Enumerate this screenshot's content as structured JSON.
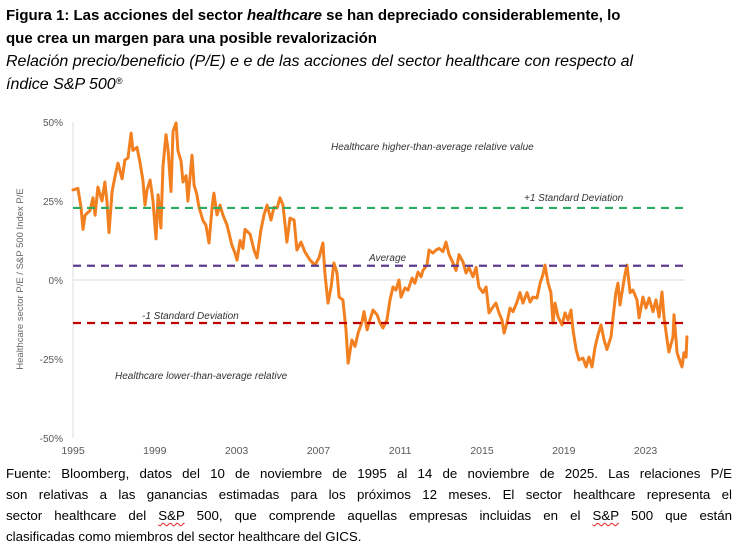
{
  "figure": {
    "title_line1_pre": "Figura 1: Las acciones del sector ",
    "title_line1_em": "healthcare",
    "title_line1_post": " se han depreciado considerablemente, lo",
    "title_line2": "que crea un margen para una posible revalorización",
    "subtitle_line1": "Relación precio/beneficio (P/E) e e de las acciones del sector healthcare con respecto al",
    "subtitle_line2": "índice S&P 500",
    "subtitle_sup": "®"
  },
  "chart_data": {
    "type": "line",
    "title": "",
    "xlabel": "",
    "ylabel": "Healthcare sector P/E / S&P 500 Index P/E",
    "xlim": [
      1995,
      2025.1
    ],
    "ylim": [
      -50,
      50
    ],
    "grid": false,
    "legend": null,
    "yticks": [
      50,
      25,
      0,
      -25,
      -50
    ],
    "ytick_labels": [
      "50%",
      "25%",
      "0%",
      "-25%",
      "-50%"
    ],
    "xticks": [
      1995,
      1999,
      2003,
      2007,
      2011,
      2015,
      2019,
      2023
    ],
    "xtick_labels": [
      "1995",
      "1999",
      "2003",
      "2007",
      "2011",
      "2015",
      "2019",
      "2023"
    ],
    "series": [
      {
        "color": "#F28021",
        "x": [
          1995.0,
          1995.24,
          1995.39,
          1995.49,
          1995.59,
          1995.83,
          1995.98,
          1996.08,
          1996.22,
          1996.42,
          1996.56,
          1996.66,
          1996.76,
          1996.91,
          1997.05,
          1997.2,
          1997.4,
          1997.54,
          1997.69,
          1997.84,
          1997.93,
          1998.13,
          1998.28,
          1998.42,
          1998.52,
          1998.62,
          1998.77,
          1998.91,
          1999.06,
          1999.16,
          1999.3,
          1999.4,
          1999.55,
          1999.65,
          1999.79,
          1999.89,
          2000.04,
          2000.13,
          2000.28,
          2000.38,
          2000.53,
          2000.62,
          2000.82,
          2000.92,
          2001.06,
          2001.16,
          2001.36,
          2001.5,
          2001.65,
          2001.8,
          2001.89,
          2002.04,
          2002.19,
          2002.33,
          2002.53,
          2002.77,
          2002.92,
          2003.02,
          2003.17,
          2003.31,
          2003.41,
          2003.66,
          2003.85,
          2004.0,
          2004.19,
          2004.34,
          2004.49,
          2004.68,
          2004.83,
          2004.98,
          2005.12,
          2005.27,
          2005.46,
          2005.61,
          2005.81,
          2005.95,
          2006.15,
          2006.34,
          2006.59,
          2006.83,
          2007.03,
          2007.22,
          2007.32,
          2007.47,
          2007.62,
          2007.76,
          2007.91,
          2008.01,
          2008.2,
          2008.35,
          2008.45,
          2008.64,
          2008.79,
          2008.94,
          2009.13,
          2009.23,
          2009.38,
          2009.52,
          2009.67,
          2009.87,
          2010.01,
          2010.16,
          2010.35,
          2010.5,
          2010.65,
          2010.79,
          2010.94,
          2011.04,
          2011.23,
          2011.38,
          2011.58,
          2011.72,
          2011.87,
          2012.02,
          2012.11,
          2012.31,
          2012.41,
          2012.6,
          2012.75,
          2012.9,
          2013.09,
          2013.24,
          2013.39,
          2013.58,
          2013.73,
          2013.88,
          2014.07,
          2014.22,
          2014.36,
          2014.56,
          2014.71,
          2014.85,
          2015.05,
          2015.2,
          2015.34,
          2015.54,
          2015.68,
          2015.83,
          2015.98,
          2016.08,
          2016.22,
          2016.37,
          2016.52,
          2016.71,
          2016.86,
          2017.0,
          2017.2,
          2017.35,
          2017.49,
          2017.69,
          2017.84,
          2017.98,
          2018.08,
          2018.23,
          2018.37,
          2018.47,
          2018.57,
          2018.72,
          2018.91,
          2019.06,
          2019.21,
          2019.35,
          2019.45,
          2019.6,
          2019.74,
          2019.94,
          2020.09,
          2020.23,
          2020.38,
          2020.53,
          2020.67,
          2020.82,
          2020.97,
          2021.11,
          2021.31,
          2021.41,
          2021.55,
          2021.65,
          2021.75,
          2021.89,
          2021.99,
          2022.09,
          2022.24,
          2022.38,
          2022.58,
          2022.68,
          2022.87,
          2023.02,
          2023.17,
          2023.36,
          2023.51,
          2023.66,
          2023.8,
          2023.9,
          2024.05,
          2024.14,
          2024.34,
          2024.39,
          2024.54,
          2024.63,
          2024.78,
          2024.88,
          2024.98,
          2025.02
        ],
        "y": [
          28.5,
          29,
          23,
          16,
          20.5,
          22,
          26,
          20.5,
          29.4,
          25,
          31,
          25,
          15,
          28,
          32.6,
          37,
          32,
          38,
          38.6,
          46.5,
          41,
          42,
          37,
          31.6,
          23.7,
          28.5,
          31.6,
          25,
          13,
          27,
          16.5,
          36,
          46,
          41,
          28,
          47,
          49.7,
          41,
          37.7,
          31,
          33,
          25,
          39.5,
          30,
          27,
          23,
          18.7,
          17.4,
          11.7,
          23,
          27.5,
          20.6,
          23.7,
          20.6,
          17.4,
          11,
          8.5,
          6.3,
          12.5,
          10,
          16,
          14.5,
          9.5,
          7,
          15.8,
          20.6,
          23.7,
          19,
          23,
          22.8,
          26,
          23.7,
          12,
          19.6,
          19,
          9.5,
          12,
          8.9,
          6.3,
          4.7,
          7,
          11.7,
          2.2,
          -7.3,
          -2.2,
          5.4,
          2.2,
          -5.4,
          -6.3,
          -15.8,
          -26.3,
          -19,
          -21,
          -16.8,
          -13.3,
          -10,
          -15.8,
          -12.7,
          -9.5,
          -11,
          -13.6,
          -15.2,
          -12.7,
          -6.3,
          -2.2,
          -3.2,
          0,
          -5.4,
          -2.5,
          -3.2,
          0.6,
          -1,
          2.5,
          1,
          3,
          4.7,
          9.5,
          8.5,
          9.5,
          10,
          9,
          12,
          8,
          5.4,
          3,
          8,
          5.7,
          2.2,
          4,
          1,
          4,
          -2.2,
          -4,
          -2.2,
          -10.4,
          -8.5,
          -7.3,
          -10.4,
          -12.7,
          -16.8,
          -13.6,
          -8.9,
          -10,
          -7,
          -4,
          -7.3,
          -4,
          -7,
          -5.4,
          -5.7,
          -1,
          1.6,
          4.7,
          -1,
          -4,
          -13.6,
          -7.3,
          -11.7,
          -14.2,
          -10.4,
          -12.7,
          -9.5,
          -15.8,
          -22,
          -25.3,
          -24.7,
          -27.5,
          -24.4,
          -27.5,
          -21.2,
          -17.4,
          -14.2,
          -19,
          -22,
          -18,
          -11.7,
          -4,
          -1,
          -7.9,
          -2.2,
          1.6,
          4.7,
          -4,
          -3.2,
          -6.3,
          -12,
          -5.4,
          -8.9,
          -5.7,
          -10,
          -6.3,
          -11.7,
          -3.8,
          -11.7,
          -19,
          -22.8,
          -18,
          -11,
          -23,
          -24.7,
          -27.5,
          -23,
          -24.4,
          -18
        ]
      }
    ],
    "reference_lines": [
      {
        "label": "+1 Standard Deviation",
        "value": 22.8,
        "color": "#2EAA62"
      },
      {
        "label": "Average",
        "value": 4.5,
        "color": "#5C3D8F"
      },
      {
        "label": "-1 Standard Deviation",
        "value": -13.6,
        "color": "#C00000"
      }
    ],
    "annotations": {
      "high_region": "Healthcare higher-than-average relative value",
      "low_region": "Healthcare lower-than-average relative"
    }
  },
  "footer": {
    "lines": [
      [
        {
          "text": "Fuente: Bloomberg, datos del 10 de noviembre de 1995 al 14 de noviembre de 2025. Las relaciones P/E"
        }
      ],
      [
        {
          "text": "son relativas a las ganancias estimadas para los próximos 12 meses. El sector healthcare representa el"
        }
      ],
      [
        {
          "text": "sector healthcare del "
        },
        {
          "text": "S&P"
        },
        {
          "text": " 500, que comprende aquellas empresas incluidas en el "
        },
        {
          "text": "S&P"
        },
        {
          "text": " 500 que están"
        }
      ],
      [
        {
          "text": "clasificadas como miembros del sector healthcare del GICS."
        }
      ]
    ]
  }
}
